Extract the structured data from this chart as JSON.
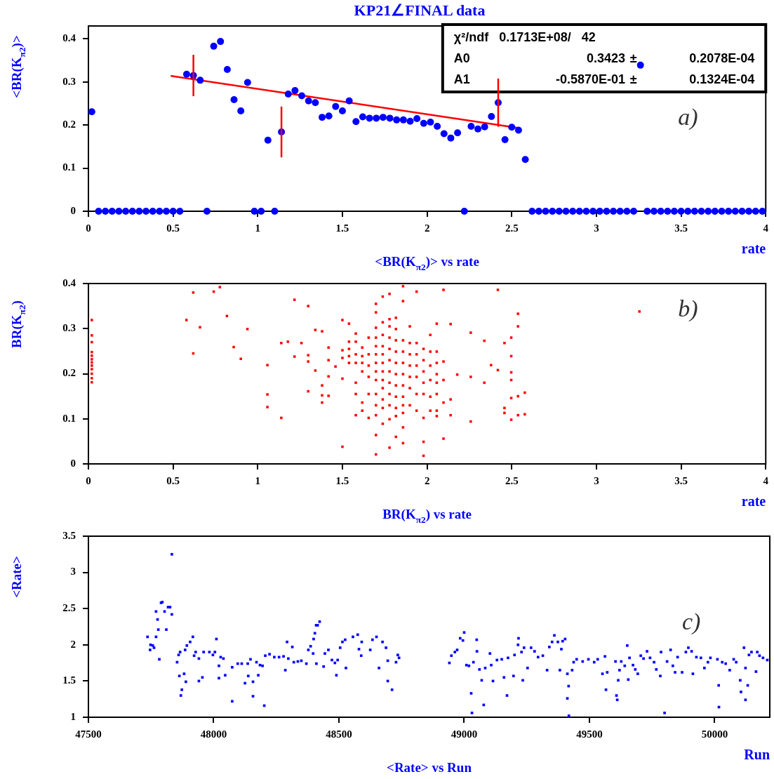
{
  "chart_data": [
    {
      "type": "scatter",
      "title": "KP21∠FINAL data",
      "subtitle": "<BR(K$_{π2}$)> vs rate",
      "xlabel": "rate",
      "ylabel": "<BR(K$_{π2}$)>",
      "xlim": [
        0,
        4
      ],
      "xticks": [
        0,
        0.5,
        1,
        1.5,
        2,
        2.5,
        3,
        3.5,
        4
      ],
      "ylim": [
        0,
        0.43
      ],
      "yticks": [
        0,
        0.1,
        0.2,
        0.3,
        0.4
      ],
      "annotations": [
        "χ²/ndf 0.1713E+08/ 42",
        "A0 0.3423 ± 0.2078E-04",
        "A1 -0.5870E-01 ± 0.1324E-04",
        "a)"
      ],
      "series": [
        {
          "color": "#0000ff",
          "marker": "circle",
          "x": [
            0.02,
            0.06,
            0.1,
            0.14,
            0.18,
            0.22,
            0.26,
            0.3,
            0.34,
            0.38,
            0.42,
            0.46,
            0.5,
            0.54,
            0.58,
            0.62,
            0.66,
            0.7,
            0.74,
            0.78,
            0.82,
            0.86,
            0.9,
            0.94,
            0.98,
            1.02,
            1.06,
            1.1,
            1.14,
            1.18,
            1.22,
            1.26,
            1.3,
            1.34,
            1.38,
            1.42,
            1.46,
            1.5,
            1.54,
            1.58,
            1.62,
            1.66,
            1.7,
            1.74,
            1.78,
            1.82,
            1.86,
            1.9,
            1.94,
            1.98,
            2.02,
            2.06,
            2.1,
            2.14,
            2.18,
            2.22,
            2.26,
            2.3,
            2.34,
            2.38,
            2.42,
            2.46,
            2.5,
            2.54,
            2.58,
            2.62,
            2.66,
            2.7,
            2.74,
            2.78,
            2.82,
            2.86,
            2.9,
            2.94,
            2.98,
            3.02,
            3.06,
            3.1,
            3.14,
            3.18,
            3.22,
            3.26,
            3.3,
            3.34,
            3.38,
            3.42,
            3.46,
            3.5,
            3.54,
            3.58,
            3.62,
            3.66,
            3.7,
            3.74,
            3.78,
            3.82,
            3.86,
            3.9,
            3.94,
            3.98
          ],
          "values": [
            0.231,
            0,
            0,
            0,
            0,
            0,
            0,
            0,
            0,
            0,
            0,
            0,
            0,
            0,
            0.318,
            0.315,
            0.304,
            0,
            0.383,
            0.394,
            0.329,
            0.259,
            0.233,
            0.299,
            0,
            0,
            0.165,
            0,
            0.184,
            0.272,
            0.28,
            0.268,
            0.256,
            0.252,
            0.218,
            0.221,
            0.243,
            0.233,
            0.256,
            0.208,
            0.219,
            0.216,
            0.216,
            0.218,
            0.216,
            0.212,
            0.212,
            0.209,
            0.215,
            0.204,
            0.207,
            0.197,
            0.18,
            0.17,
            0.182,
            0,
            0.197,
            0.191,
            0.196,
            0.22,
            0.252,
            0.166,
            0.195,
            0.188,
            0.12,
            0,
            0,
            0,
            0,
            0,
            0,
            0,
            0,
            0,
            0,
            0,
            0,
            0,
            0,
            0,
            0,
            0.339,
            0,
            0,
            0,
            0,
            0,
            0,
            0,
            0,
            0,
            0,
            0,
            0,
            0,
            0,
            0,
            0,
            0,
            0
          ],
          "errors": [
            null,
            null,
            null,
            null,
            null,
            null,
            null,
            null,
            null,
            null,
            null,
            null,
            null,
            null,
            null,
            0.048,
            null,
            null,
            null,
            null,
            null,
            null,
            null,
            null,
            null,
            null,
            null,
            null,
            0.059,
            null,
            null,
            null,
            null,
            null,
            null,
            null,
            null,
            null,
            null,
            null,
            null,
            null,
            null,
            null,
            null,
            null,
            null,
            null,
            null,
            null,
            null,
            null,
            null,
            null,
            null,
            null,
            null,
            null,
            null,
            null,
            0.056,
            null,
            null,
            null,
            null,
            null,
            null,
            null,
            null,
            null,
            null,
            null,
            null,
            null,
            null,
            null,
            null,
            null,
            null,
            null,
            null,
            null,
            null,
            null,
            null,
            null,
            null,
            null,
            null,
            null,
            null,
            null,
            null,
            null,
            null,
            null,
            null,
            null,
            null,
            null
          ]
        },
        {
          "type": "line",
          "marker": "none",
          "color": "#ff0000",
          "x": [
            0.49,
            2.53
          ],
          "values": [
            0.314,
            0.194
          ]
        }
      ]
    },
    {
      "type": "scatter",
      "subtitle": "BR(K$_{π2}$) vs rate",
      "xlabel": "rate",
      "ylabel": "BR(K$_{π2}$)",
      "xlim": [
        0,
        4
      ],
      "xticks": [
        0,
        0.5,
        1,
        1.5,
        2,
        2.5,
        3,
        3.5,
        4
      ],
      "ylim": [
        0,
        0.4
      ],
      "yticks": [
        0,
        0.1,
        0.2,
        0.3,
        0.4
      ],
      "marker": "square",
      "annotations": [
        "b)"
      ],
      "series": [
        {
          "color": "#ff0000",
          "x": [
            0.02,
            0.02,
            0.02,
            0.02,
            0.02,
            0.02,
            0.02,
            0.02,
            0.02,
            0.02,
            0.02,
            0.02,
            0.619,
            0.74,
            0.776,
            0.579,
            0.659,
            0.619,
            0.818,
            0.858,
            0.9,
            0.939,
            1.057,
            1.057,
            1.057,
            1.139,
            1.139,
            1.178,
            1.217,
            1.258,
            1.217,
            1.298,
            1.298,
            1.298,
            1.298,
            1.34,
            1.38,
            1.34,
            1.38,
            1.38,
            1.38,
            1.418,
            1.418,
            1.418,
            1.418,
            1.459,
            1.5,
            1.5,
            1.5,
            1.5,
            1.5,
            1.539,
            1.539,
            1.539,
            1.539,
            1.539,
            1.579,
            1.579,
            1.579,
            1.579,
            1.579,
            1.579,
            1.579,
            1.617,
            1.617,
            1.617,
            1.617,
            1.617,
            1.617,
            1.655,
            1.655,
            1.655,
            1.655,
            1.655,
            1.655,
            1.698,
            1.698,
            1.698,
            1.698,
            1.698,
            1.698,
            1.698,
            1.698,
            1.698,
            1.698,
            1.698,
            1.698,
            1.698,
            1.698,
            1.738,
            1.738,
            1.738,
            1.738,
            1.738,
            1.738,
            1.738,
            1.738,
            1.738,
            1.738,
            1.738,
            1.738,
            1.778,
            1.778,
            1.778,
            1.778,
            1.778,
            1.778,
            1.778,
            1.778,
            1.778,
            1.778,
            1.778,
            1.778,
            1.816,
            1.816,
            1.816,
            1.816,
            1.816,
            1.816,
            1.816,
            1.816,
            1.816,
            1.816,
            1.816,
            1.858,
            1.858,
            1.858,
            1.858,
            1.858,
            1.858,
            1.858,
            1.858,
            1.858,
            1.858,
            1.858,
            1.858,
            1.898,
            1.898,
            1.898,
            1.898,
            1.898,
            1.898,
            1.898,
            1.938,
            1.938,
            1.938,
            1.938,
            1.938,
            1.938,
            1.938,
            1.979,
            1.979,
            1.979,
            1.979,
            1.979,
            1.979,
            1.979,
            1.979,
            2.019,
            2.019,
            2.019,
            2.019,
            2.019,
            2.019,
            2.057,
            2.057,
            2.057,
            2.057,
            2.057,
            2.057,
            2.057,
            2.057,
            2.097,
            2.097,
            2.097,
            2.097,
            2.097,
            2.139,
            2.139,
            2.139,
            2.178,
            2.258,
            2.258,
            2.258,
            2.338,
            2.338,
            2.378,
            2.418,
            2.418,
            2.457,
            2.457,
            2.457,
            2.497,
            2.497,
            2.497,
            2.497,
            2.497,
            2.497,
            2.537,
            2.537,
            2.537,
            2.537,
            2.577,
            2.577,
            3.254
          ],
          "values": [
            0.319,
            0.285,
            0.27,
            0.248,
            0.24,
            0.232,
            0.225,
            0.218,
            0.21,
            0.2,
            0.19,
            0.181,
            0.38,
            0.382,
            0.392,
            0.319,
            0.303,
            0.245,
            0.328,
            0.259,
            0.233,
            0.299,
            0.219,
            0.154,
            0.126,
            0.102,
            0.268,
            0.271,
            0.364,
            0.268,
            0.238,
            0.35,
            0.241,
            0.227,
            0.161,
            0.297,
            0.294,
            0.207,
            0.174,
            0.152,
            0.136,
            0.258,
            0.23,
            0.194,
            0.151,
            0.216,
            0.319,
            0.252,
            0.235,
            0.189,
            0.038,
            0.311,
            0.271,
            0.255,
            0.239,
            0.224,
            0.289,
            0.271,
            0.243,
            0.224,
            0.18,
            0.155,
            0.108,
            0.258,
            0.239,
            0.224,
            0.205,
            0.136,
            0.118,
            0.28,
            0.243,
            0.218,
            0.193,
            0.155,
            0.102,
            0.355,
            0.336,
            0.302,
            0.28,
            0.261,
            0.243,
            0.224,
            0.205,
            0.186,
            0.155,
            0.13,
            0.108,
            0.064,
            0.021,
            0.371,
            0.314,
            0.286,
            0.261,
            0.243,
            0.224,
            0.205,
            0.186,
            0.168,
            0.143,
            0.124,
            0.089,
            0.377,
            0.321,
            0.305,
            0.28,
            0.255,
            0.23,
            0.205,
            0.18,
            0.155,
            0.13,
            0.099,
            0.036,
            0.324,
            0.299,
            0.274,
            0.249,
            0.224,
            0.199,
            0.174,
            0.149,
            0.124,
            0.106,
            0.06,
            0.394,
            0.361,
            0.274,
            0.249,
            0.224,
            0.199,
            0.174,
            0.149,
            0.13,
            0.113,
            0.081,
            0.046,
            0.305,
            0.268,
            0.243,
            0.218,
            0.193,
            0.168,
            0.13,
            0.382,
            0.268,
            0.243,
            0.218,
            0.193,
            0.155,
            0.118,
            0.255,
            0.23,
            0.205,
            0.18,
            0.155,
            0.102,
            0.049,
            0.018,
            0.286,
            0.249,
            0.218,
            0.186,
            0.149,
            0.118,
            0.311,
            0.249,
            0.224,
            0.199,
            0.18,
            0.155,
            0.118,
            0.106,
            0.386,
            0.227,
            0.186,
            0.136,
            0.056,
            0.31,
            0.143,
            0.108,
            0.198,
            0.291,
            0.193,
            0.094,
            0.273,
            0.18,
            0.219,
            0.386,
            0.208,
            0.268,
            0.124,
            0.113,
            0.28,
            0.239,
            0.203,
            0.186,
            0.146,
            0.098,
            0.333,
            0.305,
            0.15,
            0.108,
            0.158,
            0.11,
            0.338
          ]
        }
      ]
    },
    {
      "type": "scatter",
      "subtitle": "<Rate> vs Run",
      "xlabel": "Run",
      "ylabel": "<Rate>",
      "xlim": [
        47500,
        50220
      ],
      "xticks": [
        47500,
        48000,
        48500,
        49000,
        49500,
        50000
      ],
      "ylim": [
        1,
        3.5
      ],
      "yticks": [
        1,
        1.5,
        2,
        2.5,
        3,
        3.5
      ],
      "marker": "square",
      "annotations": [
        "c)"
      ],
      "series": [
        {
          "color": "#0000ff",
          "x": [
            47736,
            47748,
            47746,
            47762,
            47757,
            47770,
            47770,
            47783,
            47776,
            47779,
            47790,
            47795,
            47804,
            47811,
            47818,
            47826,
            47833,
            47833,
            47854,
            47860,
            47866,
            47863,
            47873,
            47869,
            47882,
            47889,
            47886,
            47893,
            47906,
            47917,
            47922,
            47928,
            47941,
            47941,
            47955,
            47960,
            47983,
            47997,
            48005,
            48011,
            48021,
            48021,
            48028,
            48039,
            48046,
            48074,
            48074,
            48096,
            48112,
            48125,
            48136,
            48138,
            48147,
            48157,
            48157,
            48171,
            48178,
            48185,
            48195,
            48202,
            48206,
            48223,
            48242,
            48261,
            48279,
            48286,
            48293,
            48298,
            48314,
            48320,
            48336,
            48350,
            48370,
            48378,
            48387,
            48397,
            48399,
            48404,
            48409,
            48415,
            48423,
            48410,
            48439,
            48444,
            48458,
            48472,
            48484,
            48490,
            48495,
            48505,
            48514,
            48525,
            48528,
            48556,
            48575,
            48580,
            48589,
            48591,
            48625,
            48634,
            48650,
            48660,
            48674,
            48688,
            48695,
            48695,
            48712,
            48728,
            48735,
            48740,
            48941,
            48949,
            48963,
            48972,
            48984,
            49000,
            48995,
            49009,
            49019,
            49028,
            49031,
            49037,
            49050,
            49051,
            49061,
            49070,
            49078,
            49084,
            49103,
            49108,
            49115,
            49131,
            49150,
            49159,
            49171,
            49175,
            49197,
            49201,
            49215,
            49217,
            49229,
            49234,
            49239,
            49253,
            49267,
            49281,
            49295,
            49314,
            49331,
            49340,
            49351,
            49360,
            49374,
            49382,
            49388,
            49393,
            49403,
            49412,
            49412,
            49417,
            49418,
            49431,
            49437,
            49449,
            49473,
            49496,
            49519,
            49533,
            49552,
            49562,
            49566,
            49571,
            49604,
            49608,
            49611,
            49615,
            49620,
            49627,
            49641,
            49651,
            49655,
            49660,
            49674,
            49683,
            49693,
            49705,
            49716,
            49730,
            49742,
            49758,
            49767,
            49783,
            49786,
            49800,
            49810,
            49824,
            49833,
            49842,
            49852,
            49870,
            49885,
            49895,
            49908,
            49913,
            49927,
            49945,
            49959,
            49973,
            49983,
            50011,
            50016,
            50017,
            50030,
            50044,
            50060,
            50076,
            50086,
            50102,
            50105,
            50117,
            50123,
            50123,
            50132,
            50137,
            50147,
            50165,
            50170,
            50179,
            50193,
            50210
          ],
          "values": [
            2.11,
            2.0,
            1.93,
            1.96,
            1.99,
            2.11,
            2.46,
            1.8,
            2.35,
            2.21,
            2.58,
            2.59,
            2.46,
            2.21,
            2.52,
            2.52,
            3.25,
            2.42,
            1.76,
            1.86,
            1.9,
            1.57,
            1.38,
            1.3,
            1.6,
            1.49,
            1.93,
            1.99,
            2.04,
            2.11,
            1.85,
            1.9,
            1.5,
            1.81,
            1.55,
            1.9,
            1.9,
            1.86,
            1.9,
            2.08,
            1.71,
            1.54,
            1.83,
            1.81,
            1.58,
            1.69,
            1.22,
            1.74,
            1.74,
            1.47,
            1.74,
            1.57,
            1.8,
            1.49,
            1.29,
            1.76,
            1.58,
            1.72,
            1.71,
            1.16,
            1.85,
            1.87,
            1.83,
            1.83,
            1.84,
            1.65,
            2.04,
            1.81,
            1.97,
            1.76,
            1.77,
            1.78,
            1.74,
            1.93,
            1.98,
            1.88,
            2.08,
            2.16,
            2.27,
            2.27,
            2.32,
            1.74,
            1.7,
            1.88,
            1.93,
            1.79,
            1.75,
            1.58,
            1.79,
            1.96,
            2.04,
            2.07,
            1.68,
            2.11,
            2.14,
            1.94,
            1.85,
            2.04,
            1.93,
            2.07,
            2.11,
            1.68,
            2.04,
            1.96,
            1.78,
            1.5,
            1.38,
            1.76,
            1.86,
            1.82,
            1.75,
            1.85,
            1.9,
            1.93,
            2.09,
            2.17,
            2.06,
            1.72,
            1.71,
            1.33,
            1.06,
            1.76,
            2.07,
            1.91,
            1.66,
            1.51,
            1.17,
            1.68,
            1.88,
            1.72,
            1.5,
            1.79,
            1.8,
            1.55,
            1.3,
            1.82,
            1.57,
            1.86,
            2.0,
            2.09,
            1.9,
            1.51,
            1.96,
            1.68,
            1.96,
            1.91,
            1.83,
            1.85,
            1.65,
            1.97,
            2.04,
            2.13,
            2.04,
            1.65,
            1.94,
            2.05,
            2.08,
            1.6,
            1.26,
            1.43,
            1.02,
            1.65,
            1.76,
            1.8,
            1.77,
            1.8,
            1.76,
            1.8,
            1.6,
            1.84,
            1.38,
            1.62,
            1.77,
            1.3,
            1.24,
            1.51,
            1.65,
            1.77,
            1.71,
            1.99,
            1.52,
            1.82,
            1.72,
            1.66,
            1.6,
            1.85,
            1.81,
            1.91,
            1.82,
            1.76,
            1.66,
            1.57,
            1.9,
            1.06,
            1.77,
            1.93,
            1.71,
            1.62,
            1.83,
            1.62,
            1.9,
            1.96,
            1.91,
            1.6,
            1.83,
            1.82,
            1.68,
            1.76,
            1.82,
            1.8,
            1.44,
            1.14,
            1.76,
            1.74,
            1.65,
            1.8,
            1.76,
            1.51,
            1.35,
            1.96,
            1.24,
            1.68,
            1.44,
            1.86,
            1.9,
            1.63,
            1.9,
            1.85,
            1.82,
            1.79
          ]
        }
      ]
    }
  ]
}
